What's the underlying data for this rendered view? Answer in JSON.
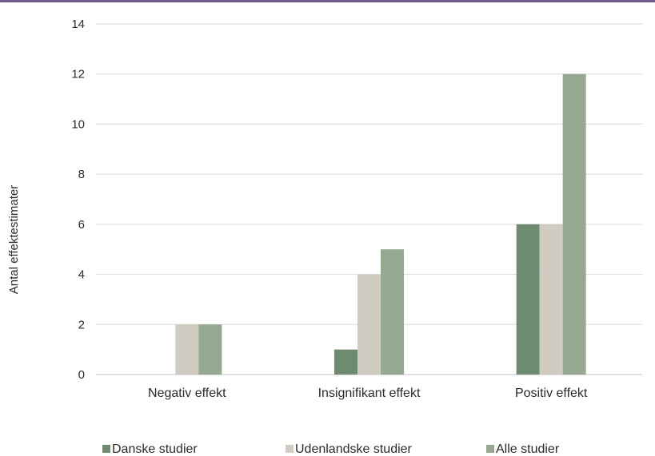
{
  "chart_data": {
    "type": "bar",
    "title": "",
    "xlabel": "",
    "ylabel": "Antal effektestimater",
    "categories": [
      "Negativ effekt",
      "Insignifikant effekt",
      "Positiv effekt"
    ],
    "series": [
      {
        "name": "Danske studier",
        "values": [
          0,
          1,
          6
        ],
        "color": "#6e8b70"
      },
      {
        "name": "Udenlandske studier",
        "values": [
          2,
          4,
          6
        ],
        "color": "#d1ccc2"
      },
      {
        "name": "Alle studier",
        "values": [
          2,
          5,
          12
        ],
        "color": "#97a891"
      }
    ],
    "ylim": [
      0,
      14
    ],
    "yticks": [
      0,
      2,
      4,
      6,
      8,
      10,
      12,
      14
    ],
    "grid": true,
    "legend": "bottom",
    "colors": {
      "gridline": "#d9d9d9",
      "baseline": "#bfbfbf",
      "top_rule": "#6b5b8c"
    }
  }
}
